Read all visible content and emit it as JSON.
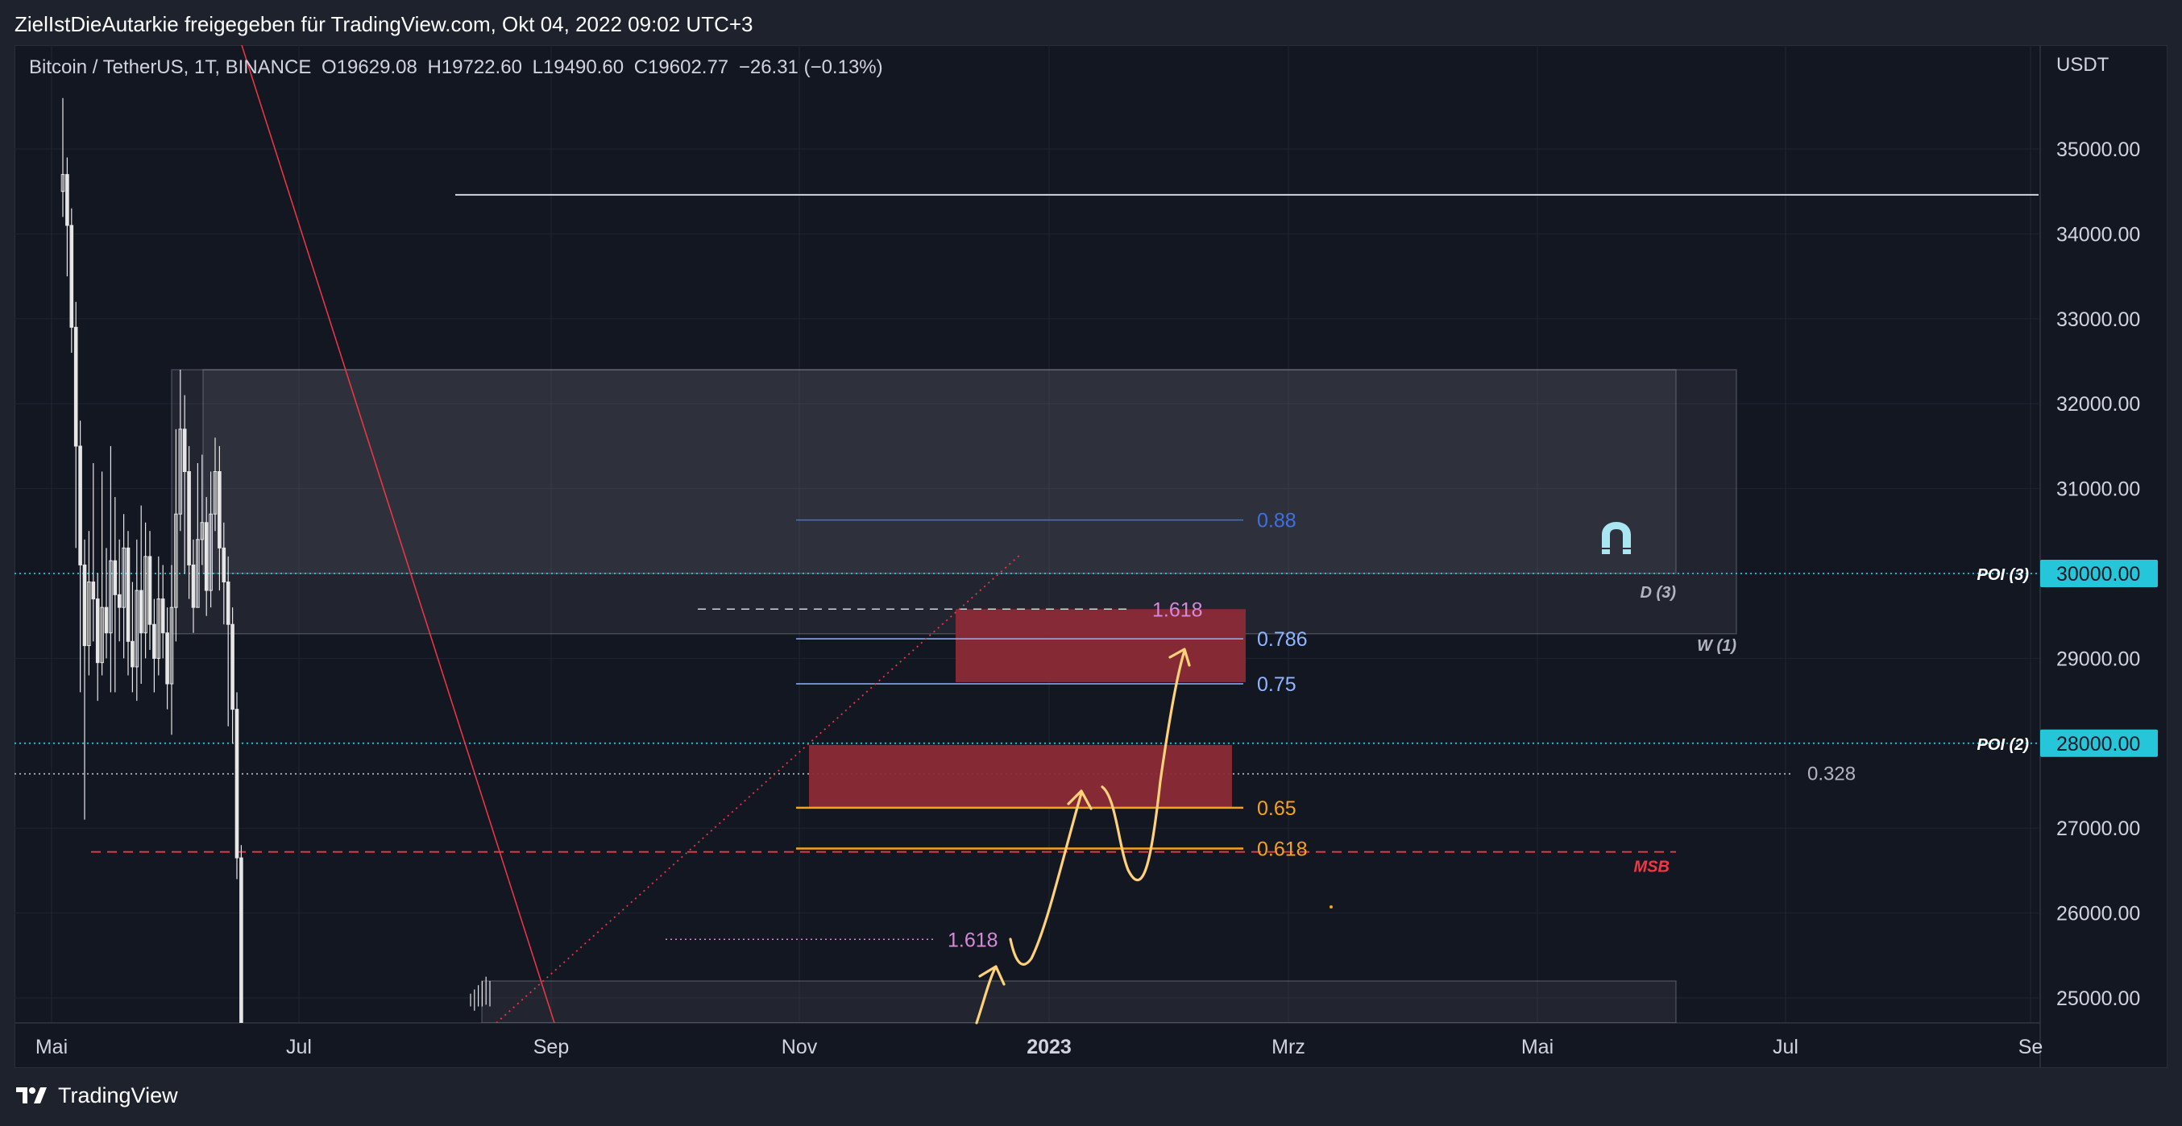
{
  "header": {
    "attribution": "ZielIstDieAutarkie freigegeben für TradingView.com, Okt 04, 2022 09:02 UTC+3"
  },
  "legend": {
    "symbol": "Bitcoin / TetherUS, 1T, BINANCE",
    "open": "O19629.08",
    "high": "H19722.60",
    "low": "L19490.60",
    "close": "C19602.77",
    "change": "−26.31 (−0.13%)"
  },
  "footer": {
    "brand": "TradingView"
  },
  "colors": {
    "background": "#131722",
    "frame": "#1e222d",
    "grid": "#1f2430",
    "candle": "#e6e6e6",
    "poi_line": "#26c6da",
    "msb": "#f23645",
    "fib_blue": "#3f6fe0",
    "fib_light_blue": "#90b4ff",
    "fib_orange": "#f7a21b",
    "fib_pink": "#d48ad8",
    "supply_zone": "#8b2a37",
    "arrow": "#ffd27a"
  },
  "chart_data": {
    "type": "candlestick",
    "symbol": "Bitcoin / TetherUS",
    "interval": "1T",
    "exchange": "BINANCE",
    "ylabel": "USDT",
    "ylim": [
      24700,
      36000
    ],
    "y_ticks": [
      "35000.00",
      "34000.00",
      "33000.00",
      "32000.00",
      "31000.00",
      "30000.00",
      "29000.00",
      "28000.00",
      "27000.00",
      "26000.00",
      "25000.00"
    ],
    "x_ticks": [
      {
        "label": "Mai",
        "bold": false
      },
      {
        "label": "Jul",
        "bold": false
      },
      {
        "label": "Sep",
        "bold": false
      },
      {
        "label": "Nov",
        "bold": false
      },
      {
        "label": "2023",
        "bold": true
      },
      {
        "label": "Mrz",
        "bold": false
      },
      {
        "label": "Mai",
        "bold": false
      },
      {
        "label": "Jul",
        "bold": false
      },
      {
        "label": "Se",
        "bold": false
      }
    ],
    "price_tags": [
      {
        "label": "POI (3)",
        "price": 30000,
        "value": "30000.00"
      },
      {
        "label": "POI (2)",
        "price": 28000,
        "value": "28000.00"
      }
    ],
    "levels": [
      {
        "name": "resistance",
        "price": 34460,
        "style": "solid",
        "color": "#d1d4dc",
        "label": ""
      },
      {
        "name": "poi-3",
        "price": 30000,
        "style": "dotted",
        "color": "#26c6da",
        "label": ""
      },
      {
        "name": "poi-2",
        "price": 28000,
        "style": "dotted",
        "color": "#26c6da",
        "label": ""
      },
      {
        "name": "level-0328",
        "price": 27640,
        "style": "dotted",
        "color": "#b2b5be",
        "label": "0.328"
      },
      {
        "name": "msb",
        "price": 26720,
        "style": "dashed",
        "color": "#f23645",
        "label": "MSB"
      }
    ],
    "zones": [
      {
        "name": "weekly-zone",
        "label": "W (1)",
        "top": 32400,
        "bottom": 29290
      },
      {
        "name": "daily-zone",
        "label": "D (3)",
        "top": 32400,
        "bottom": 30000
      },
      {
        "name": "lower-zone",
        "label": "",
        "top": 25200,
        "bottom": 24700
      }
    ],
    "supply_zones": [
      {
        "name": "upper-supply",
        "top": 29580,
        "bottom": 28720
      },
      {
        "name": "lower-supply",
        "top": 27980,
        "bottom": 27230
      }
    ],
    "fib_levels": [
      {
        "label": "0.88",
        "price": 30630,
        "color": "#3f6fe0"
      },
      {
        "label": "1.618",
        "price": 29580,
        "color": "#d48ad8"
      },
      {
        "label": "0.786",
        "price": 29230,
        "color": "#90b4ff"
      },
      {
        "label": "0.75",
        "price": 28700,
        "color": "#90b4ff"
      },
      {
        "label": "0.65",
        "price": 27240,
        "color": "#f7a21b"
      },
      {
        "label": "0.618",
        "price": 26760,
        "color": "#f7a21b"
      },
      {
        "label": "1.618",
        "price": 25690,
        "color": "#d48ad8"
      }
    ],
    "candles": [
      [
        34500,
        34700,
        35600,
        34200
      ],
      [
        34700,
        34100,
        34900,
        33500
      ],
      [
        34100,
        32900,
        34300,
        32600
      ],
      [
        32900,
        31500,
        33200,
        30300
      ],
      [
        31500,
        30100,
        31800,
        28600
      ],
      [
        30100,
        29150,
        30400,
        27100
      ],
      [
        29150,
        29900,
        30500,
        28800
      ],
      [
        29900,
        29700,
        31300,
        29200
      ],
      [
        29700,
        28950,
        30000,
        28500
      ],
      [
        28950,
        29600,
        31200,
        28800
      ],
      [
        29600,
        29300,
        30300,
        29000
      ],
      [
        29300,
        30150,
        31500,
        28600
      ],
      [
        30150,
        29750,
        30900,
        28600
      ],
      [
        29750,
        29600,
        30400,
        29200
      ],
      [
        29600,
        30300,
        30700,
        29000
      ],
      [
        30300,
        29200,
        30500,
        28800
      ],
      [
        29200,
        28900,
        29900,
        28600
      ],
      [
        28900,
        29800,
        30400,
        28500
      ],
      [
        29800,
        29300,
        30800,
        28700
      ],
      [
        29300,
        30200,
        30600,
        29000
      ],
      [
        30200,
        29400,
        30500,
        29100
      ],
      [
        29400,
        29000,
        29700,
        28600
      ],
      [
        29000,
        29700,
        30200,
        28800
      ],
      [
        29700,
        29300,
        30100,
        29000
      ],
      [
        29300,
        28700,
        29600,
        28400
      ],
      [
        28700,
        29600,
        30100,
        28100
      ],
      [
        29600,
        30700,
        31700,
        29200
      ],
      [
        30700,
        31700,
        32400,
        30500
      ],
      [
        31700,
        31200,
        32100,
        30000
      ],
      [
        31200,
        30100,
        31500,
        29700
      ],
      [
        30100,
        29600,
        30400,
        29300
      ],
      [
        29600,
        30400,
        31300,
        29600
      ],
      [
        30400,
        30600,
        31400,
        30100
      ],
      [
        30600,
        29800,
        30900,
        29500
      ],
      [
        29800,
        30700,
        31200,
        29600
      ],
      [
        30700,
        31200,
        31600,
        30500
      ],
      [
        31200,
        30300,
        31500,
        29800
      ],
      [
        30300,
        29900,
        30600,
        29400
      ],
      [
        29900,
        29400,
        30200,
        28200
      ],
      [
        29400,
        28400,
        29600,
        28000
      ],
      [
        28400,
        26650,
        28600,
        26400
      ],
      [
        26650,
        24700,
        26800,
        24700
      ]
    ],
    "recent_candles": [
      [
        24950,
        25000,
        25050,
        24900
      ],
      [
        25000,
        24950,
        25100,
        24850
      ],
      [
        24950,
        25050,
        25150,
        24900
      ],
      [
        25050,
        24980,
        25200,
        24900
      ],
      [
        24980,
        25150,
        25250,
        24920
      ],
      [
        25150,
        25000,
        25200,
        24900
      ]
    ]
  }
}
